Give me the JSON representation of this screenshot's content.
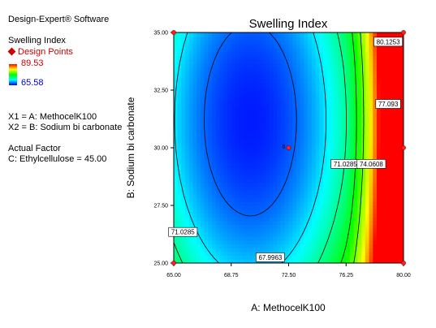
{
  "software": "Design-Expert® Software",
  "response": {
    "name": "Swelling Index",
    "design_points_label": "Design Points",
    "max": "89.53",
    "min": "65.58"
  },
  "factors": {
    "x1": "X1 = A: MethocelK100",
    "x2": "X2 = B: Sodium bi carbonate"
  },
  "actual_factor": {
    "heading": "Actual Factor",
    "value": "C: Ethylcellulose = 45.00"
  },
  "chart_data": {
    "type": "heatmap",
    "subtype": "contour",
    "title": "Swelling Index",
    "xlabel": "A: MethocelK100",
    "ylabel": "B: Sodium bi carbonate",
    "xlim": [
      65.0,
      80.0
    ],
    "ylim": [
      25.0,
      35.0
    ],
    "xticks": [
      "65.00",
      "68.75",
      "72.50",
      "76.25",
      "80.00"
    ],
    "yticks": [
      "25.00",
      "27.50",
      "30.00",
      "32.50",
      "35.00"
    ],
    "colorscale": [
      "#0000ff",
      "#00ffff",
      "#00ff00",
      "#ffff00",
      "#ff0000"
    ],
    "grid": false,
    "contour_labels": [
      "67.9963",
      "71.0285",
      "71.0285",
      "74.0608",
      "77.093",
      "80.1253"
    ],
    "center_point": {
      "x": 72.5,
      "y": 30.0,
      "label": "6"
    },
    "design_points": [
      {
        "x": 65.0,
        "y": 35.0
      },
      {
        "x": 80.0,
        "y": 35.0
      },
      {
        "x": 65.0,
        "y": 25.0
      },
      {
        "x": 80.0,
        "y": 25.0
      },
      {
        "x": 80.0,
        "y": 30.0
      },
      {
        "x": 72.5,
        "y": 30.0
      }
    ]
  }
}
